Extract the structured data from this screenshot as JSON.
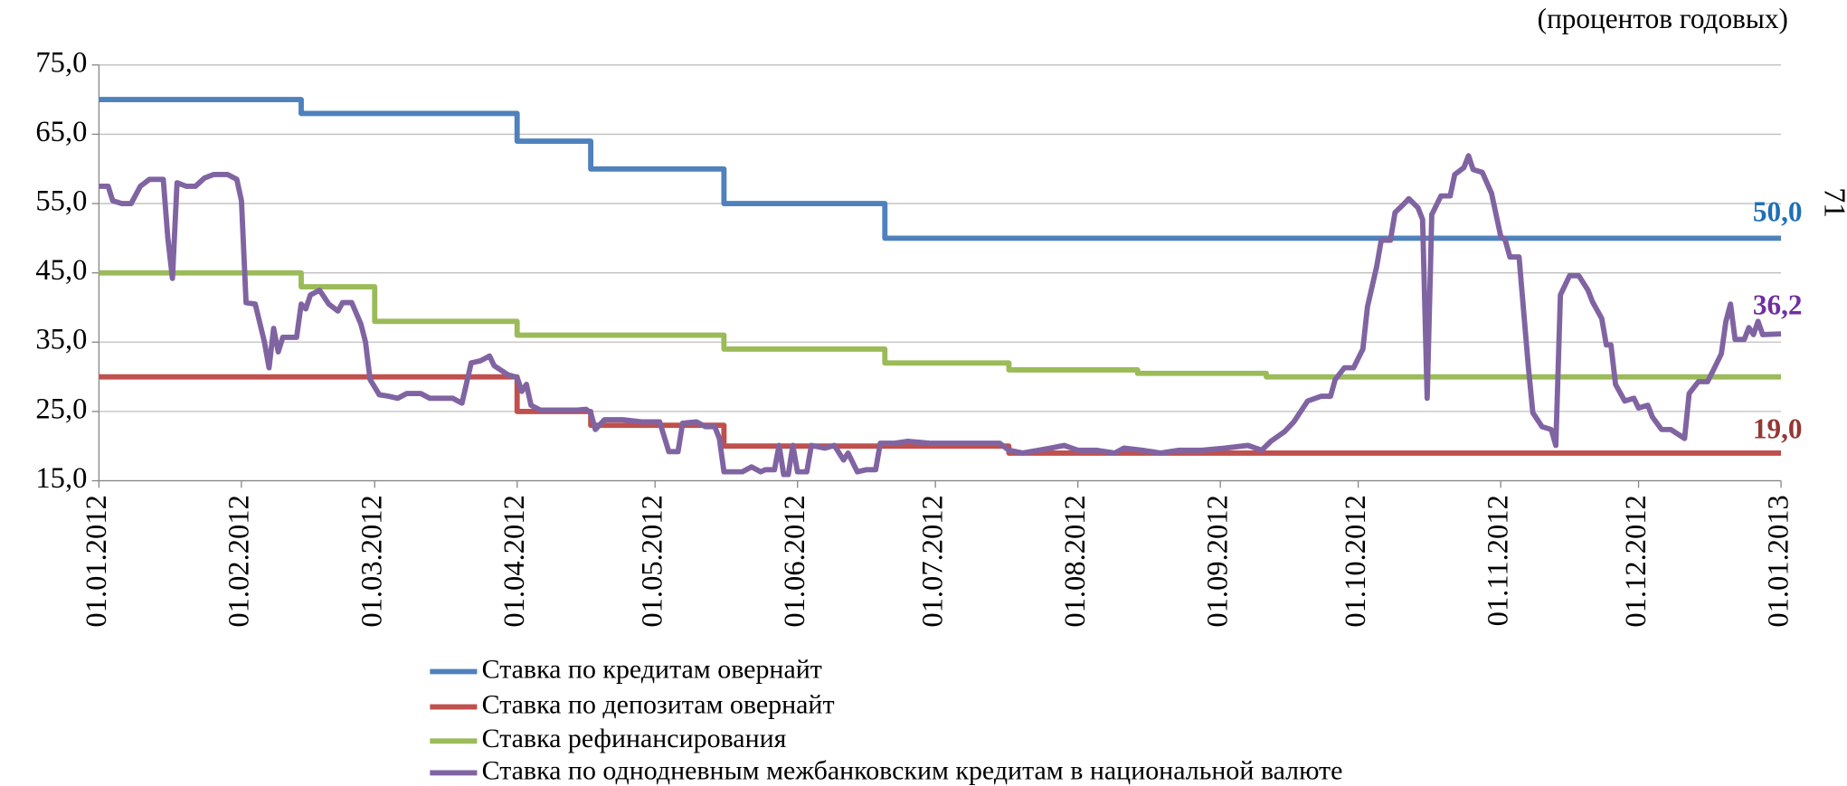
{
  "chart_data": {
    "type": "line",
    "subtitle": "(процентов годовых)",
    "page_number": "71",
    "xlim": [
      "01.01.2012",
      "01.01.2013"
    ],
    "xticks": [
      "01.01.2012",
      "01.02.2012",
      "01.03.2012",
      "01.04.2012",
      "01.05.2012",
      "01.06.2012",
      "01.07.2012",
      "01.08.2012",
      "01.09.2012",
      "01.10.2012",
      "01.11.2012",
      "01.12.2012",
      "01.01.2013"
    ],
    "ylim": [
      15,
      75
    ],
    "yticks": [
      {
        "value": 15,
        "label": "15,0"
      },
      {
        "value": 25,
        "label": "25,0"
      },
      {
        "value": 35,
        "label": "35,0"
      },
      {
        "value": 45,
        "label": "45,0"
      },
      {
        "value": 55,
        "label": "55,0"
      },
      {
        "value": 65,
        "label": "65,0"
      },
      {
        "value": 75,
        "label": "75,0"
      }
    ],
    "grid": true,
    "legend": "bottom",
    "series": [
      {
        "name": "Ставка по кредитам овернайт",
        "color": "#4f81bd",
        "x": [
          "01.01.2012",
          "14.02.2012",
          "14.02.2012",
          "01.04.2012",
          "01.04.2012",
          "17.04.2012",
          "17.04.2012",
          "16.05.2012",
          "16.05.2012",
          "20.06.2012",
          "20.06.2012",
          "01.01.2013"
        ],
        "values": [
          70,
          70,
          68,
          68,
          64,
          64,
          60,
          60,
          55,
          55,
          50,
          50
        ]
      },
      {
        "name": "Ставка по депозитам овернайт",
        "color": "#c0504d",
        "x": [
          "01.01.2012",
          "01.04.2012",
          "01.04.2012",
          "17.04.2012",
          "17.04.2012",
          "16.05.2012",
          "16.05.2012",
          "17.07.2012",
          "17.07.2012",
          "01.01.2013"
        ],
        "values": [
          30,
          30,
          25,
          25,
          23,
          23,
          20,
          20,
          19,
          19
        ]
      },
      {
        "name": "Ставка рефинансирования",
        "color": "#9bbb59",
        "x": [
          "01.01.2012",
          "14.02.2012",
          "14.02.2012",
          "01.03.2012",
          "01.03.2012",
          "01.04.2012",
          "01.04.2012",
          "16.05.2012",
          "16.05.2012",
          "20.06.2012",
          "20.06.2012",
          "17.07.2012",
          "17.07.2012",
          "14.08.2012",
          "14.08.2012",
          "11.09.2012",
          "11.09.2012",
          "01.01.2013"
        ],
        "values": [
          45,
          45,
          43,
          43,
          38,
          38,
          36,
          36,
          34,
          34,
          32,
          32,
          31,
          31,
          30.5,
          30.5,
          30,
          30
        ]
      },
      {
        "name": "Ставка по однодневным межбанковским кредитам в национальной валюте",
        "color": "#8064a2",
        "x": [
          "01.01.2012",
          "03.01.2012",
          "04.01.2012",
          "06.01.2012",
          "08.01.2012",
          "10.01.2012",
          "12.01.2012",
          "15.01.2012",
          "16.01.2012",
          "17.01.2012",
          "18.01.2012",
          "20.01.2012",
          "22.01.2012",
          "24.01.2012",
          "26.01.2012",
          "29.01.2012",
          "31.01.2012",
          "01.02.2012",
          "02.02.2012",
          "04.02.2012",
          "06.02.2012",
          "07.02.2012",
          "08.02.2012",
          "09.02.2012",
          "10.02.2012",
          "13.02.2012",
          "14.02.2012",
          "15.02.2012",
          "16.02.2012",
          "18.02.2012",
          "20.02.2012",
          "22.02.2012",
          "23.02.2012",
          "25.02.2012",
          "27.02.2012",
          "28.02.2012",
          "29.02.2012",
          "02.03.2012",
          "04.03.2012",
          "06.03.2012",
          "08.03.2012",
          "11.03.2012",
          "13.03.2012",
          "18.03.2012",
          "20.03.2012",
          "22.03.2012",
          "24.03.2012",
          "26.03.2012",
          "27.03.2012",
          "30.03.2012",
          "01.04.2012",
          "02.04.2012",
          "03.04.2012",
          "04.04.2012",
          "06.04.2012",
          "09.04.2012",
          "11.04.2012",
          "14.04.2012",
          "16.04.2012",
          "17.04.2012",
          "18.04.2012",
          "20.04.2012",
          "24.04.2012",
          "28.04.2012",
          "02.05.2012",
          "04.05.2012",
          "06.05.2012",
          "07.05.2012",
          "10.05.2012",
          "12.05.2012",
          "14.05.2012",
          "15.05.2012",
          "16.05.2012",
          "18.05.2012",
          "20.05.2012",
          "22.05.2012",
          "24.05.2012",
          "25.05.2012",
          "27.05.2012",
          "28.05.2012",
          "29.05.2012",
          "30.05.2012",
          "31.05.2012",
          "01.06.2012",
          "03.06.2012",
          "04.06.2012",
          "07.06.2012",
          "09.06.2012",
          "11.06.2012",
          "12.06.2012",
          "14.06.2012",
          "16.06.2012",
          "18.06.2012",
          "19.06.2012",
          "22.06.2012",
          "25.06.2012",
          "30.06.2012",
          "05.07.2012",
          "10.07.2012",
          "15.07.2012",
          "17.07.2012",
          "20.07.2012",
          "26.07.2012",
          "29.07.2012",
          "01.08.2012",
          "05.08.2012",
          "09.08.2012",
          "11.08.2012",
          "15.08.2012",
          "19.08.2012",
          "23.08.2012",
          "28.08.2012",
          "02.09.2012",
          "07.09.2012",
          "10.09.2012",
          "12.09.2012",
          "15.09.2012",
          "17.09.2012",
          "20.09.2012",
          "23.09.2012",
          "25.09.2012",
          "26.09.2012",
          "28.09.2012",
          "30.09.2012",
          "02.10.2012",
          "03.10.2012",
          "05.10.2012",
          "06.10.2012",
          "08.10.2012",
          "09.10.2012",
          "11.10.2012",
          "12.10.2012",
          "14.10.2012",
          "15.10.2012",
          "16.10.2012",
          "17.10.2012",
          "19.10.2012",
          "21.10.2012",
          "22.10.2012",
          "24.10.2012",
          "25.10.2012",
          "26.10.2012",
          "28.10.2012",
          "30.10.2012",
          "01.11.2012",
          "02.11.2012",
          "03.11.2012",
          "05.11.2012",
          "07.11.2012",
          "08.11.2012",
          "10.11.2012",
          "12.11.2012",
          "13.11.2012",
          "14.11.2012",
          "16.11.2012",
          "18.11.2012",
          "20.11.2012",
          "21.11.2012",
          "23.11.2012",
          "24.11.2012",
          "25.11.2012",
          "26.11.2012",
          "28.11.2012",
          "30.11.2012",
          "01.12.2012",
          "03.12.2012",
          "04.12.2012",
          "06.12.2012",
          "08.12.2012",
          "11.12.2012",
          "12.12.2012",
          "14.12.2012",
          "16.12.2012",
          "17.12.2012",
          "19.12.2012",
          "20.12.2012",
          "21.12.2012",
          "22.12.2012",
          "24.12.2012",
          "25.12.2012",
          "26.12.2012",
          "27.12.2012",
          "28.12.2012",
          "01.01.2013"
        ],
        "values": [
          57.5,
          57.5,
          55.4,
          55,
          55,
          57.5,
          58.5,
          58.5,
          50,
          44.2,
          58,
          57.5,
          57.5,
          58.7,
          59.2,
          59.2,
          58.5,
          55.4,
          40.7,
          40.5,
          35,
          31.3,
          37,
          33.6,
          35.7,
          35.7,
          40.5,
          39.8,
          41.8,
          42.5,
          40.5,
          39.5,
          40.7,
          40.7,
          37.6,
          35,
          29.6,
          27.4,
          27.2,
          26.9,
          27.6,
          27.6,
          26.9,
          26.9,
          26.2,
          32,
          32.3,
          33,
          31.6,
          30.3,
          29.9,
          27.9,
          28.9,
          25.9,
          25.2,
          25.2,
          25.2,
          25.2,
          25.3,
          24.8,
          22.4,
          23.8,
          23.8,
          23.5,
          23.5,
          19.2,
          19.2,
          23.3,
          23.5,
          22.8,
          22.8,
          21.1,
          16.3,
          16.3,
          16.3,
          17,
          16.3,
          16.6,
          16.6,
          20.1,
          15.9,
          15.9,
          20.1,
          16.3,
          16.3,
          20.1,
          19.7,
          20.1,
          18,
          19,
          16.3,
          16.6,
          16.6,
          20.4,
          20.4,
          20.7,
          20.4,
          20.4,
          20.4,
          20.4,
          19.4,
          19,
          19.7,
          20.1,
          19.4,
          19.4,
          19,
          19.7,
          19.4,
          19,
          19.4,
          19.4,
          19.7,
          20.1,
          19.4,
          20.7,
          22.1,
          23.5,
          26.5,
          27.2,
          27.2,
          29.6,
          31.3,
          31.3,
          34,
          40.1,
          45.9,
          49.7,
          49.7,
          53.7,
          55,
          55.7,
          54.4,
          52.7,
          26.9,
          53.4,
          56.1,
          56.1,
          59.2,
          60.2,
          61.9,
          59.9,
          59.5,
          56.5,
          50.3,
          49.7,
          47.3,
          47.3,
          31.6,
          24.8,
          22.8,
          22.4,
          20.1,
          41.8,
          44.6,
          44.6,
          42.5,
          40.8,
          38.4,
          34.6,
          34.6,
          28.9,
          26.5,
          26.9,
          25.5,
          25.9,
          24.2,
          22.4,
          22.4,
          21.1,
          27.6,
          29.3,
          29.3,
          30.6,
          33.3,
          38,
          40.5,
          35.4,
          35.4,
          37.1,
          36.1,
          38,
          36.1,
          36.2
        ]
      }
    ],
    "annotations": [
      {
        "label": "50,0",
        "value": 50,
        "color": "#1f6fb5"
      },
      {
        "label": "36,2",
        "value": 36.2,
        "color": "#7030a0"
      },
      {
        "label": "19,0",
        "value": 19,
        "color": "#953735"
      }
    ]
  }
}
